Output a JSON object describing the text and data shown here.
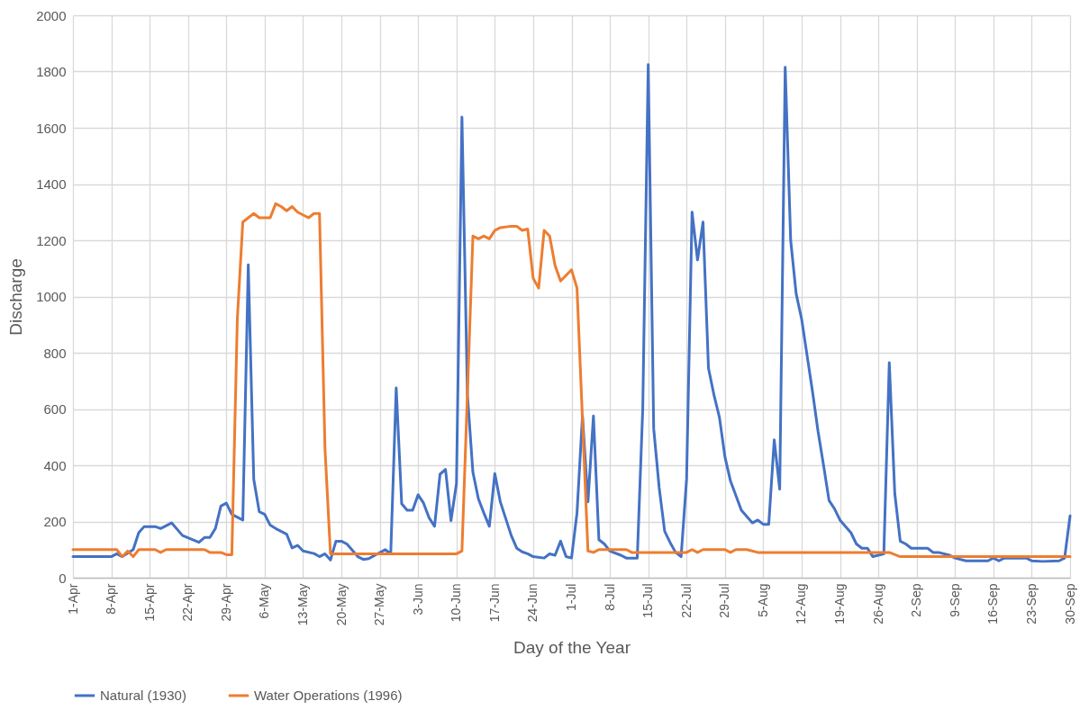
{
  "chart_data": {
    "type": "line",
    "xlabel": "Day of the Year",
    "ylabel": "Discharge",
    "xlim": [
      "--04-01",
      "--09-30"
    ],
    "xticks": [
      {
        "value": "--04-01",
        "label": "1-Apr"
      },
      {
        "value": "--04-08",
        "label": "8-Apr"
      },
      {
        "value": "--04-15",
        "label": "15-Apr"
      },
      {
        "value": "--04-22",
        "label": "22-Apr"
      },
      {
        "value": "--04-29",
        "label": "29-Apr"
      },
      {
        "value": "--05-06",
        "label": "6-May"
      },
      {
        "value": "--05-13",
        "label": "13-May"
      },
      {
        "value": "--05-20",
        "label": "20-May"
      },
      {
        "value": "--05-27",
        "label": "27-May"
      },
      {
        "value": "--06-03",
        "label": "3-Jun"
      },
      {
        "value": "--06-10",
        "label": "10-Jun"
      },
      {
        "value": "--06-17",
        "label": "17-Jun"
      },
      {
        "value": "--06-24",
        "label": "24-Jun"
      },
      {
        "value": "--07-01",
        "label": "1-Jul"
      },
      {
        "value": "--07-08",
        "label": "8-Jul"
      },
      {
        "value": "--07-15",
        "label": "15-Jul"
      },
      {
        "value": "--07-22",
        "label": "22-Jul"
      },
      {
        "value": "--07-29",
        "label": "29-Jul"
      },
      {
        "value": "--08-05",
        "label": "5-Aug"
      },
      {
        "value": "--08-12",
        "label": "12-Aug"
      },
      {
        "value": "--08-19",
        "label": "19-Aug"
      },
      {
        "value": "--08-26",
        "label": "26-Aug"
      },
      {
        "value": "--09-02",
        "label": "2-Sep"
      },
      {
        "value": "--09-09",
        "label": "9-Sep"
      },
      {
        "value": "--09-16",
        "label": "16-Sep"
      },
      {
        "value": "--09-23",
        "label": "23-Sep"
      },
      {
        "value": "--09-30",
        "label": "30-Sep"
      }
    ],
    "ylim": [
      0,
      2000
    ],
    "yticks": [
      0,
      200,
      400,
      600,
      800,
      1000,
      1200,
      1400,
      1600,
      1800,
      2000
    ],
    "grid": true,
    "legend": "bottom",
    "marker": "none",
    "line_style": "solid",
    "series": [
      {
        "name": "Natural (1930)",
        "color": "#4472c4",
        "x": [
          "--04-01",
          "--04-08",
          "--04-09",
          "--04-10",
          "--04-12",
          "--04-13",
          "--04-14",
          "--04-16",
          "--04-17",
          "--04-19",
          "--04-21",
          "--04-24",
          "--04-25",
          "--04-26",
          "--04-27",
          "--04-28",
          "--04-29",
          "--04-30",
          "--05-02",
          "--05-03",
          "--05-04",
          "--05-05",
          "--05-06",
          "--05-07",
          "--05-08",
          "--05-10",
          "--05-11",
          "--05-12",
          "--05-13",
          "--05-15",
          "--05-16",
          "--05-17",
          "--05-18",
          "--05-19",
          "--05-20",
          "--05-21",
          "--05-23",
          "--05-24",
          "--05-25",
          "--05-28",
          "--05-29",
          "--05-30",
          "--05-31",
          "--06-01",
          "--06-02",
          "--06-03",
          "--06-04",
          "--06-05",
          "--06-06",
          "--06-07",
          "--06-08",
          "--06-09",
          "--06-10",
          "--06-11",
          "--06-12",
          "--06-13",
          "--06-14",
          "--06-15",
          "--06-16",
          "--06-17",
          "--06-18",
          "--06-19",
          "--06-20",
          "--06-21",
          "--06-22",
          "--06-23",
          "--06-24",
          "--06-26",
          "--06-27",
          "--06-28",
          "--06-29",
          "--06-30",
          "--07-01",
          "--07-02",
          "--07-03",
          "--07-04",
          "--07-05",
          "--07-06",
          "--07-07",
          "--07-08",
          "--07-10",
          "--07-11",
          "--07-13",
          "--07-14",
          "--07-15",
          "--07-16",
          "--07-17",
          "--07-18",
          "--07-19",
          "--07-20",
          "--07-21",
          "--07-22",
          "--07-23",
          "--07-24",
          "--07-25",
          "--07-26",
          "--07-27",
          "--07-28",
          "--07-29",
          "--07-30",
          "--08-01",
          "--08-03",
          "--08-04",
          "--08-05",
          "--08-06",
          "--08-07",
          "--08-08",
          "--08-09",
          "--08-10",
          "--08-11",
          "--08-12",
          "--08-13",
          "--08-14",
          "--08-15",
          "--08-16",
          "--08-17",
          "--08-18",
          "--08-19",
          "--08-21",
          "--08-22",
          "--08-23",
          "--08-24",
          "--08-25",
          "--08-27",
          "--08-28",
          "--08-29",
          "--08-30",
          "--08-31",
          "--09-01",
          "--09-04",
          "--09-05",
          "--09-06",
          "--09-08",
          "--09-09",
          "--09-11",
          "--09-15",
          "--09-16",
          "--09-17",
          "--09-18",
          "--09-22",
          "--09-23",
          "--09-25",
          "--09-28",
          "--09-29",
          "--09-30"
        ],
        "values": [
          75,
          75,
          85,
          75,
          100,
          160,
          182,
          182,
          175,
          195,
          150,
          126,
          143,
          143,
          175,
          255,
          265,
          225,
          205,
          1113,
          350,
          235,
          225,
          187,
          175,
          155,
          106,
          115,
          95,
          86,
          75,
          85,
          63,
          130,
          130,
          120,
          75,
          65,
          68,
          100,
          85,
          675,
          263,
          240,
          240,
          295,
          265,
          213,
          183,
          368,
          385,
          203,
          335,
          1638,
          650,
          375,
          281,
          230,
          183,
          370,
          270,
          210,
          150,
          105,
          92,
          85,
          75,
          70,
          85,
          80,
          130,
          75,
          70,
          230,
          575,
          270,
          575,
          135,
          120,
          95,
          80,
          70,
          70,
          600,
          1825,
          530,
          320,
          165,
          125,
          90,
          75,
          350,
          1300,
          1130,
          1265,
          745,
          650,
          570,
          430,
          345,
          240,
          195,
          205,
          190,
          190,
          490,
          315,
          1815,
          1200,
          1010,
          920,
          790,
          660,
          520,
          400,
          275,
          245,
          205,
          160,
          120,
          105,
          105,
          75,
          85,
          765,
          300,
          130,
          120,
          105,
          105,
          90,
          90,
          80,
          70,
          60,
          60,
          70,
          60,
          70,
          70,
          60,
          58,
          60,
          70,
          220
        ]
      },
      {
        "name": "Water Operations (1996)",
        "color": "#ed7d31",
        "x": [
          "--04-01",
          "--04-09",
          "--04-10",
          "--04-11",
          "--04-12",
          "--04-13",
          "--04-16",
          "--04-17",
          "--04-18",
          "--04-25",
          "--04-26",
          "--04-28",
          "--04-29",
          "--04-30",
          "--05-01",
          "--05-02",
          "--05-03",
          "--05-04",
          "--05-05",
          "--05-07",
          "--05-08",
          "--05-09",
          "--05-10",
          "--05-11",
          "--05-12",
          "--05-14",
          "--05-15",
          "--05-16",
          "--05-17",
          "--05-18",
          "--06-10",
          "--06-11",
          "--06-13",
          "--06-14",
          "--06-15",
          "--06-16",
          "--06-17",
          "--06-18",
          "--06-20",
          "--06-21",
          "--06-22",
          "--06-23",
          "--06-24",
          "--06-25",
          "--06-26",
          "--06-27",
          "--06-28",
          "--06-29",
          "--07-01",
          "--07-02",
          "--07-04",
          "--07-05",
          "--07-06",
          "--07-11",
          "--07-12",
          "--07-22",
          "--07-23",
          "--07-24",
          "--07-25",
          "--07-29",
          "--07-30",
          "--07-31",
          "--08-02",
          "--08-04",
          "--08-28",
          "--08-30",
          "--09-30"
        ],
        "values": [
          100,
          100,
          75,
          95,
          75,
          100,
          100,
          90,
          100,
          100,
          90,
          90,
          82,
          82,
          920,
          1265,
          1280,
          1295,
          1280,
          1280,
          1330,
          1320,
          1305,
          1320,
          1300,
          1280,
          1295,
          1295,
          460,
          85,
          85,
          95,
          1215,
          1205,
          1215,
          1205,
          1235,
          1245,
          1250,
          1250,
          1235,
          1240,
          1065,
          1030,
          1235,
          1215,
          1110,
          1055,
          1095,
          1030,
          95,
          90,
          100,
          100,
          90,
          90,
          100,
          90,
          100,
          100,
          90,
          100,
          100,
          90,
          90,
          75,
          75
        ]
      }
    ]
  }
}
